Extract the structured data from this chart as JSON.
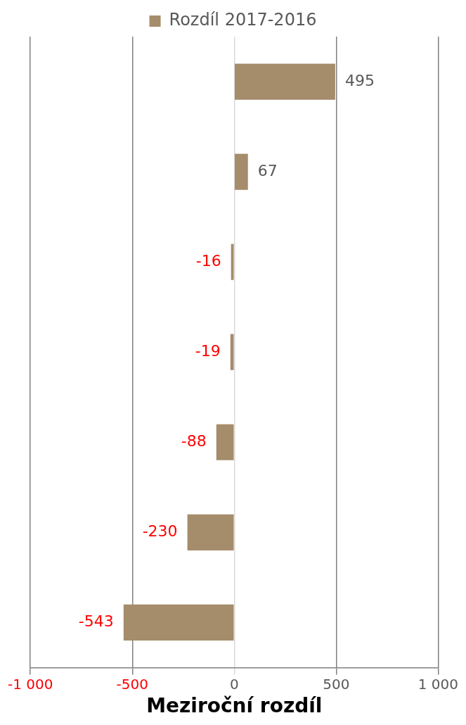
{
  "chart_data": {
    "type": "bar",
    "orientation": "horizontal",
    "xlabel": "Meziroční rozdíl",
    "categories": [
      null,
      null,
      null,
      null,
      null,
      null,
      null
    ],
    "series": [
      {
        "name": "Rozdíl 2017-2016",
        "color": "#a58c6a",
        "values": [
          495,
          67,
          -16,
          -19,
          -88,
          -230,
          -543
        ]
      }
    ],
    "xlim": [
      -1000,
      1000
    ],
    "xticks": [
      {
        "value": -1000,
        "label": "-1 000"
      },
      -500,
      0,
      500,
      {
        "value": 1000,
        "label": "1 000"
      }
    ],
    "grid": "x",
    "legend": "top",
    "data_labels": true
  }
}
